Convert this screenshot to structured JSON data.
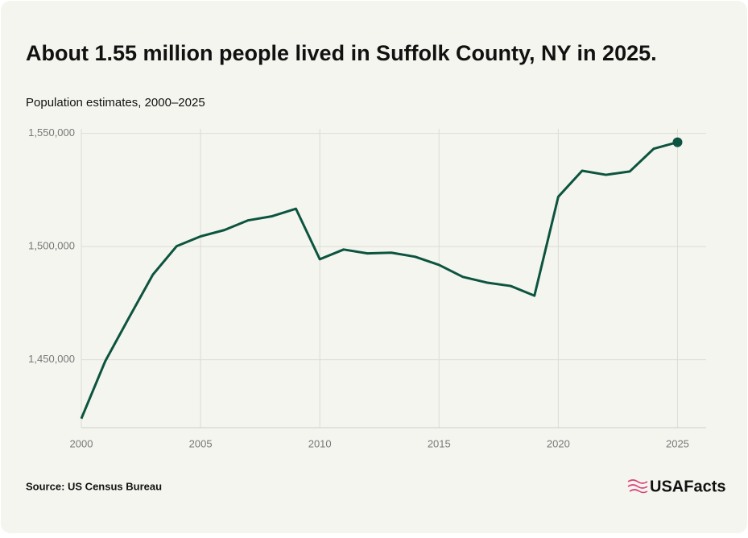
{
  "chart_data": {
    "type": "line",
    "title": "About 1.55 million people lived in Suffolk County, NY in 2025.",
    "subtitle": "Population estimates, 2000–2025",
    "source": "Source: US Census Bureau",
    "brand": "USAFacts",
    "x": [
      2000,
      2001,
      2002,
      2003,
      2004,
      2005,
      2006,
      2007,
      2008,
      2009,
      2010,
      2011,
      2012,
      2013,
      2014,
      2015,
      2016,
      2017,
      2018,
      2019,
      2020,
      2021,
      2022,
      2023,
      2024,
      2025
    ],
    "series": [
      {
        "name": "Population",
        "color": "#0c5440",
        "values": [
          1424000,
          1449300,
          1468600,
          1487600,
          1500200,
          1504500,
          1507300,
          1511600,
          1513400,
          1516700,
          1494400,
          1498700,
          1497000,
          1497300,
          1495500,
          1491900,
          1486600,
          1484100,
          1482600,
          1478300,
          1522000,
          1533500,
          1531700,
          1533200,
          1543200,
          1546100
        ]
      }
    ],
    "xlim": [
      2000,
      2026.2
    ],
    "xticks": [
      2000,
      2005,
      2010,
      2015,
      2020,
      2025
    ],
    "ylim": [
      1420000,
      1552000
    ],
    "yticks": [
      {
        "value": 1450000,
        "label": "1,450,000"
      },
      {
        "value": 1500000,
        "label": "1,500,000"
      },
      {
        "value": 1550000,
        "label": "1,550,000"
      }
    ],
    "grid": true
  }
}
